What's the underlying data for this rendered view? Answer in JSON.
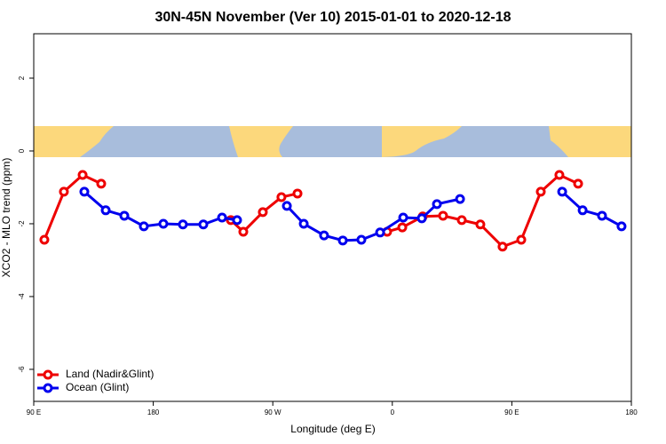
{
  "chart_data": {
    "type": "line",
    "title": "30N-45N November (Ver 10)   2015-01-01 to 2020-12-18",
    "x_label": "Longitude (deg E)",
    "y_label": "XCO2 - MLO trend (ppm)",
    "xlim": [
      90,
      540
    ],
    "ylim": [
      -6.88,
      3.22
    ],
    "xticks": [
      {
        "value": 90,
        "label": "90 E"
      },
      180,
      {
        "value": 270,
        "label": "90 W"
      },
      {
        "value": 360,
        "label": "0"
      },
      {
        "value": 450,
        "label": "90 E"
      },
      {
        "value": 540,
        "label": "180"
      }
    ],
    "yticks": [
      -6,
      -4,
      -2,
      0,
      2
    ],
    "legend": "bottom-left",
    "series": [
      {
        "name": "Land (Nadir&Glint)",
        "color": "#ee0000",
        "x": [
          98,
          112.7,
          126.8,
          140.8,
          null,
          238.4,
          247.8,
          262.5,
          276.5,
          288.6,
          null,
          356.1,
          367.5,
          382.9,
          398.2,
          412.3,
          426.3,
          443,
          457.1,
          471.8,
          485.8,
          499.9
        ],
        "values": [
          -2.44,
          -1.12,
          -0.66,
          -0.9,
          null,
          -1.9,
          -2.22,
          -1.68,
          -1.27,
          -1.17,
          null,
          -2.22,
          -2.1,
          -1.8,
          -1.78,
          -1.9,
          -2.02,
          -2.63,
          -2.44,
          -1.12,
          -0.66,
          -0.9
        ]
      },
      {
        "name": "Ocean (Glint)",
        "color": "#0000ee",
        "x": [
          128.1,
          144.2,
          158.2,
          172.9,
          187.6,
          202.3,
          217.7,
          231.8,
          243.1,
          null,
          280.6,
          293.3,
          308.6,
          322.7,
          336.7,
          350.8,
          368.2,
          382.2,
          393.6,
          411,
          null,
          487.9,
          503.3,
          517.9,
          532.6
        ],
        "values": [
          -1.12,
          -1.63,
          -1.78,
          -2.07,
          -2,
          -2.02,
          -2.02,
          -1.83,
          -1.9,
          null,
          -1.51,
          -2,
          -2.32,
          -2.46,
          -2.44,
          -2.24,
          -1.83,
          -1.85,
          -1.46,
          -1.32,
          null,
          -1.12,
          -1.63,
          -1.78,
          -2.07
        ]
      }
    ]
  }
}
